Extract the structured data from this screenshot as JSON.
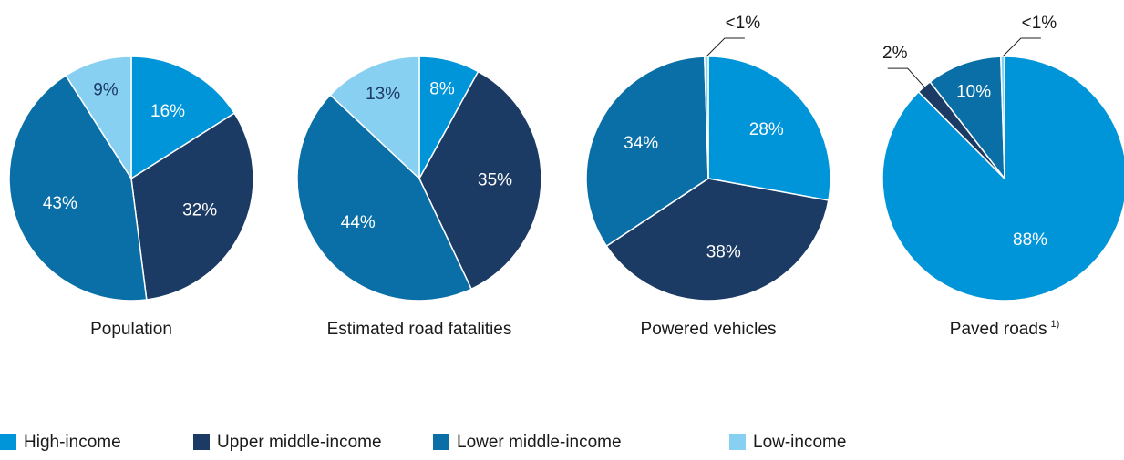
{
  "chart_data": [
    {
      "type": "pie",
      "title": "Population",
      "values": [
        16,
        32,
        43,
        9
      ],
      "value_labels": [
        "16%",
        "32%",
        "43%",
        "9%"
      ]
    },
    {
      "type": "pie",
      "title": "Estimated road fatalities",
      "values": [
        8,
        35,
        44,
        13
      ],
      "value_labels": [
        "8%",
        "35%",
        "44%",
        "13%"
      ]
    },
    {
      "type": "pie",
      "title": "Powered vehicles",
      "values": [
        28,
        38,
        34,
        0.5
      ],
      "value_labels": [
        "28%",
        "38%",
        "34%",
        "<1%"
      ]
    },
    {
      "type": "pie",
      "title": "Paved roads",
      "title_note": "1)",
      "values": [
        88,
        2,
        10,
        0.5
      ],
      "value_labels": [
        "88%",
        "2%",
        "10%",
        "<1%"
      ]
    }
  ],
  "legend": {
    "categories": [
      "High-income",
      "Upper middle-income",
      "Lower middle-income",
      "Low-income"
    ],
    "colors": [
      "#0095d9",
      "#1b3a64",
      "#0a6fa6",
      "#88d0f2"
    ]
  }
}
